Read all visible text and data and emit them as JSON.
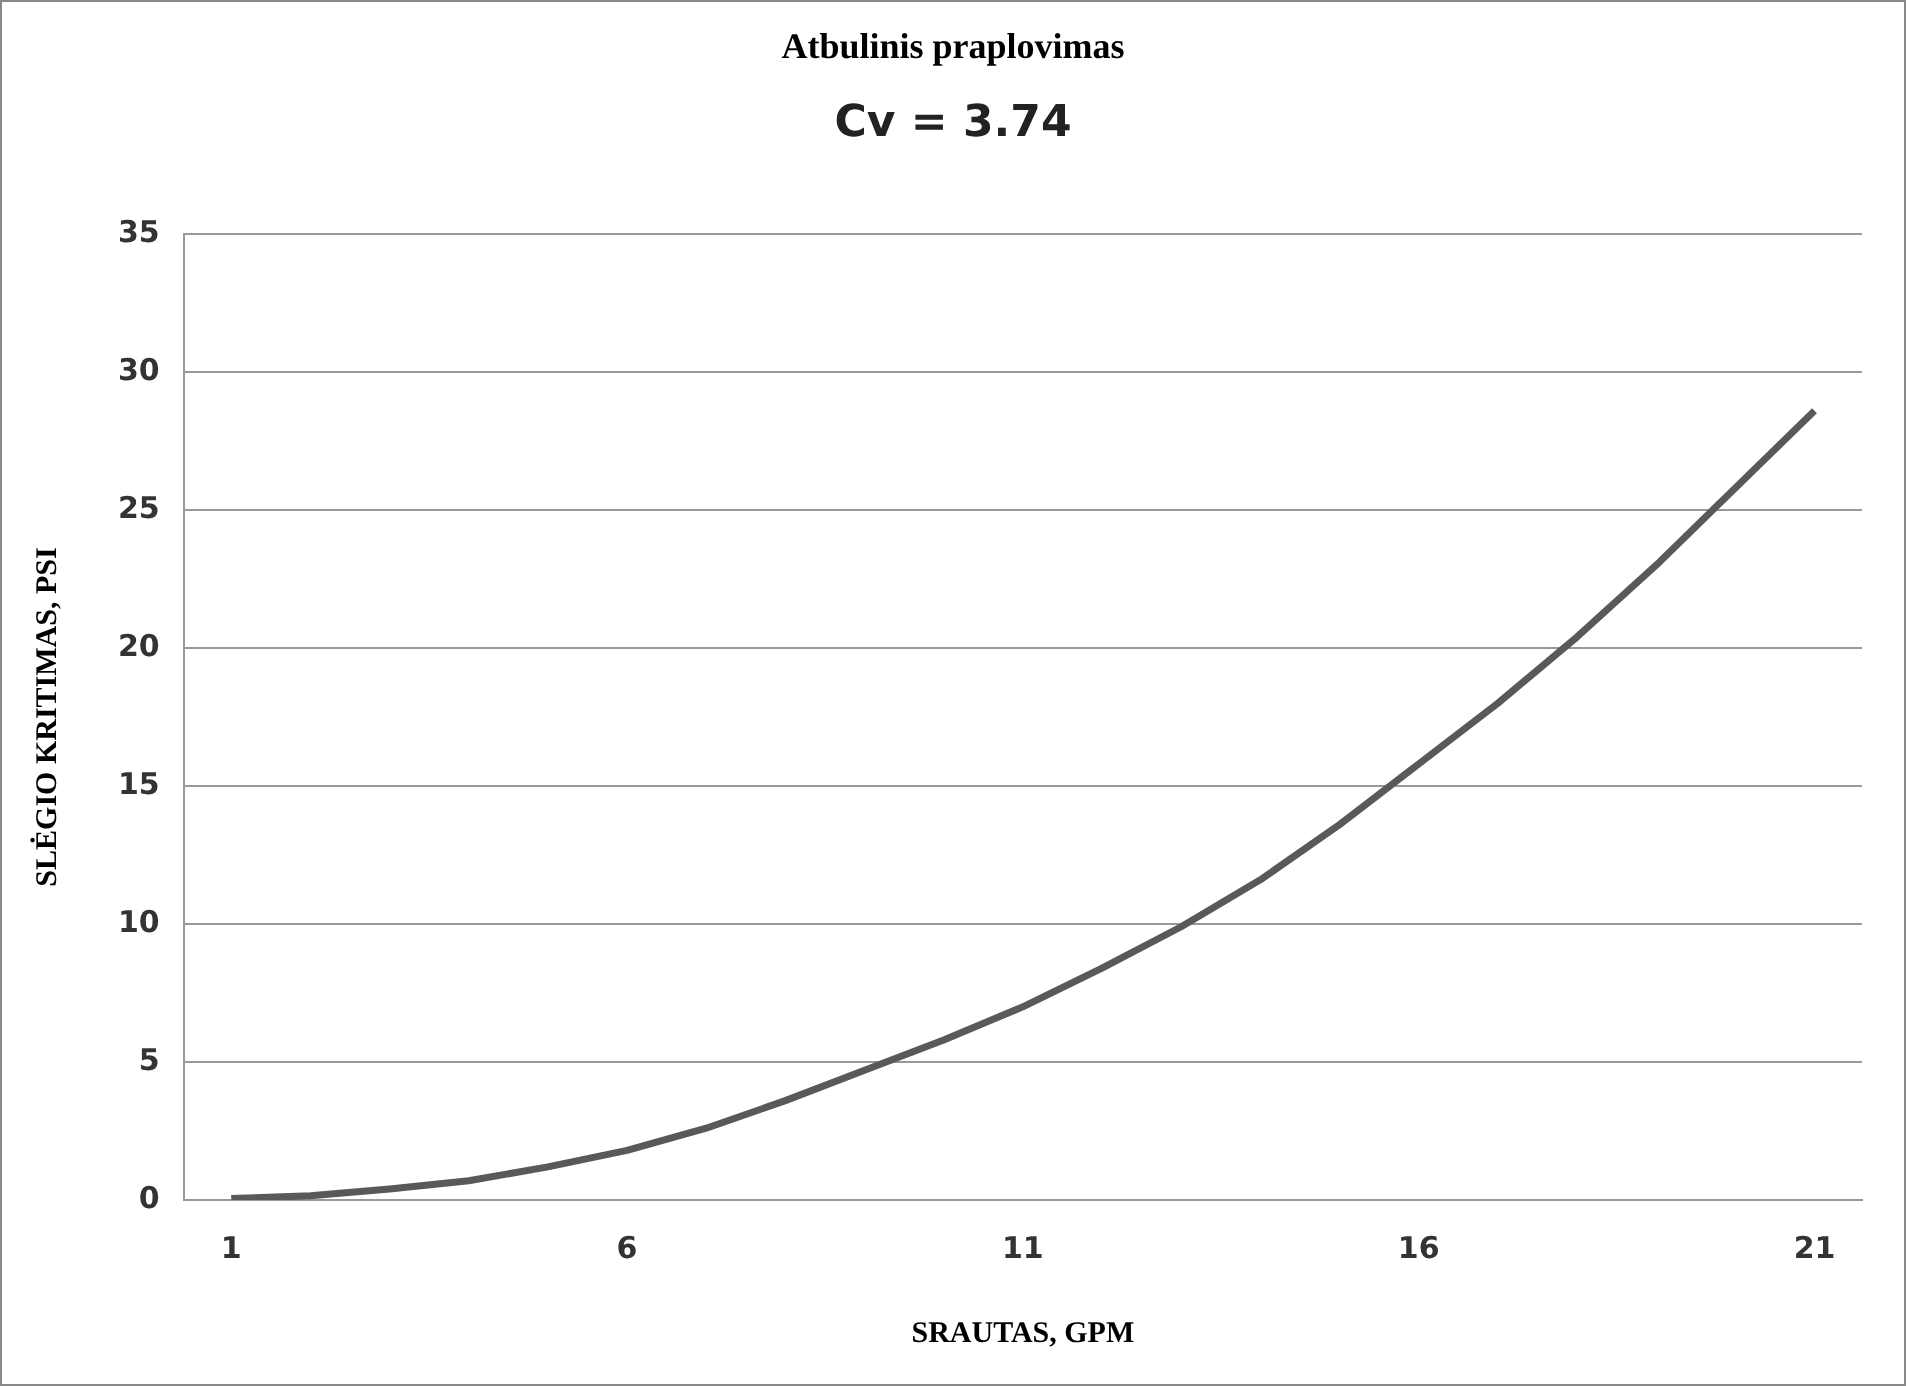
{
  "chart_data": {
    "type": "line",
    "title": "Atbulinis praplovimas",
    "subtitle": "Cv = 3.74",
    "xlabel": "SRAUTAS, GPM",
    "ylabel": "SLĖGIO KRITIMAS, PSI",
    "x": [
      1,
      2,
      3,
      4,
      5,
      6,
      7,
      8,
      9,
      10,
      11,
      12,
      13,
      14,
      15,
      16,
      17,
      18,
      19,
      20,
      21
    ],
    "series": [
      {
        "color": "#595959",
        "values": [
          0.05,
          0.15,
          0.4,
          0.7,
          1.2,
          1.8,
          2.6,
          3.6,
          4.7,
          5.8,
          7.0,
          8.4,
          9.9,
          11.6,
          13.6,
          15.8,
          18.0,
          20.4,
          23.0,
          25.8,
          28.6
        ]
      }
    ],
    "xlim": [
      0.4,
      21.6
    ],
    "xticks": [
      1,
      6,
      11,
      16,
      21
    ],
    "ylim": [
      0,
      35
    ],
    "yticks": [
      0,
      5,
      10,
      15,
      20,
      25,
      30,
      35
    ],
    "grid": "y",
    "legend": false,
    "marker": "none",
    "line_style": "solid"
  }
}
